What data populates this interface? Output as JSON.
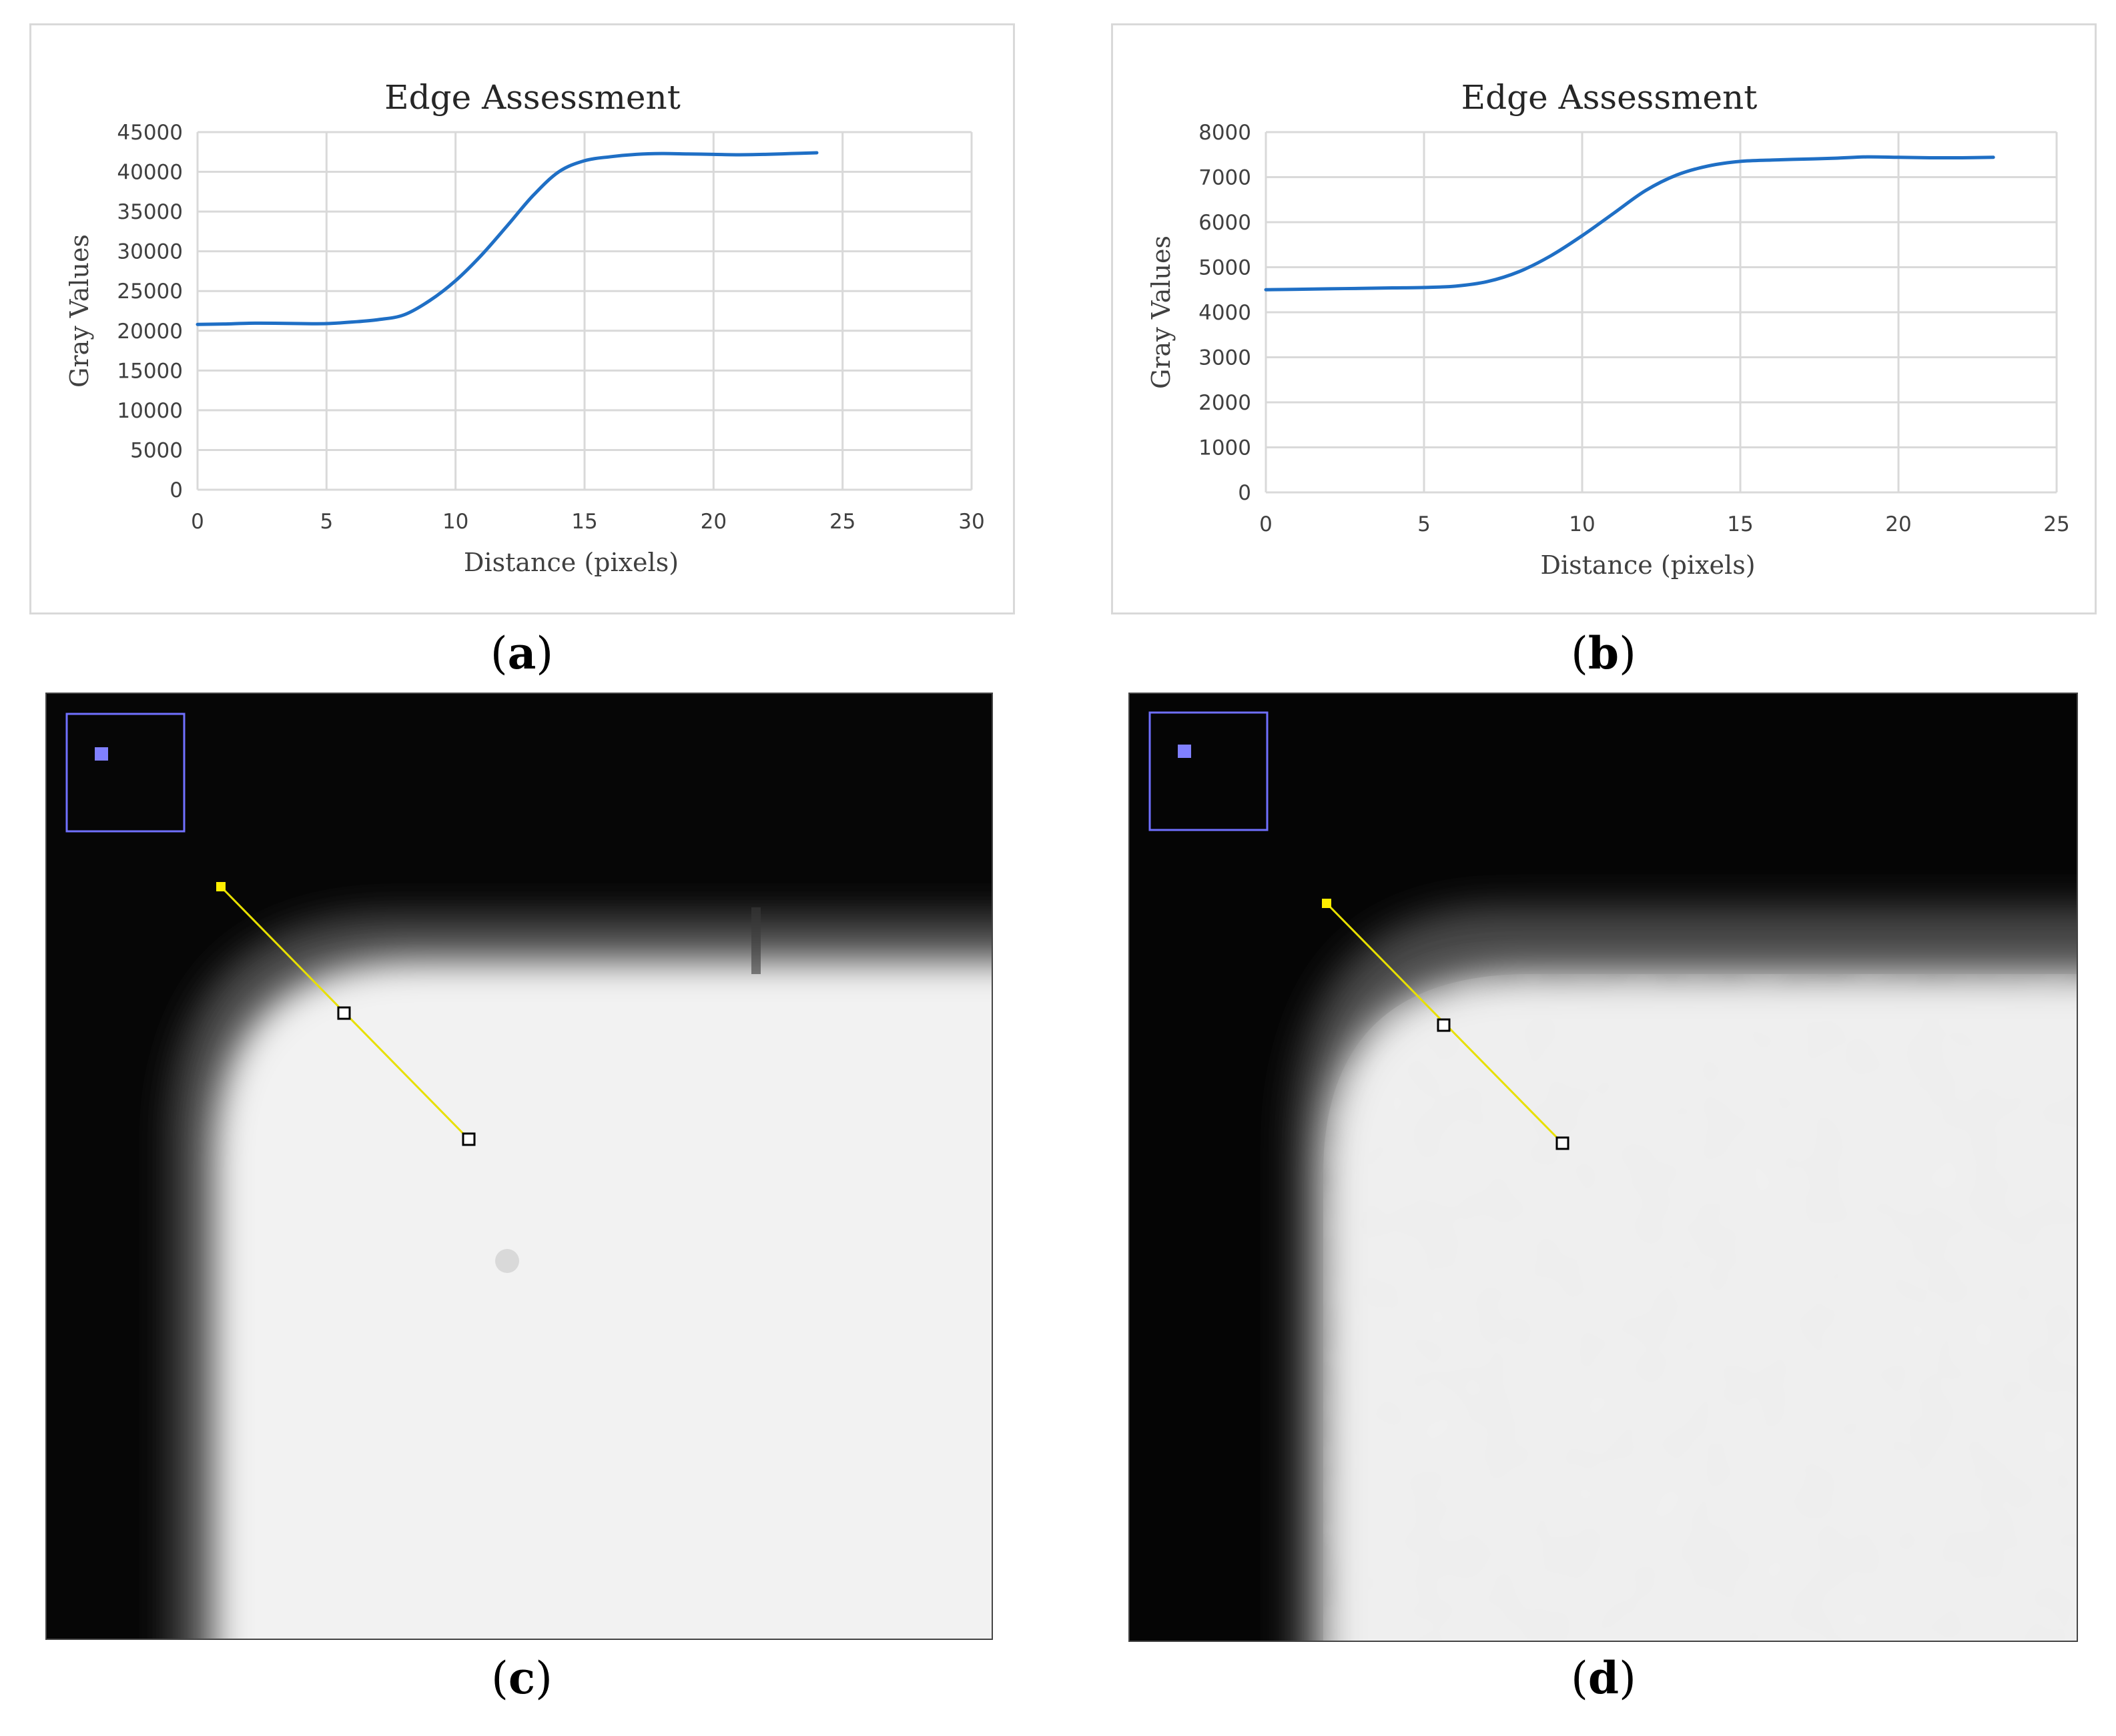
{
  "chart_data": [
    {
      "id": "a",
      "type": "line",
      "title": "Edge Assessment",
      "xlabel": "Distance (pixels)",
      "ylabel": "Gray Values",
      "xlim": [
        0,
        30
      ],
      "ylim": [
        0,
        45000
      ],
      "xticks": [
        0,
        5,
        10,
        15,
        20,
        25,
        30
      ],
      "yticks": [
        0,
        5000,
        10000,
        15000,
        20000,
        25000,
        30000,
        35000,
        40000,
        45000
      ],
      "grid": true,
      "series": [
        {
          "name": "Gray Values",
          "color": "#1f6fc5",
          "x": [
            0,
            1,
            2,
            3,
            4,
            5,
            6,
            7,
            8,
            9,
            10,
            11,
            12,
            13,
            14,
            15,
            16,
            17,
            18,
            19,
            20,
            21,
            22,
            23,
            24
          ],
          "y": [
            20800,
            20850,
            20950,
            20950,
            20900,
            20900,
            21100,
            21400,
            22000,
            23800,
            26300,
            29500,
            33200,
            37000,
            40000,
            41400,
            41900,
            42200,
            42300,
            42250,
            42200,
            42150,
            42200,
            42300,
            42400
          ]
        }
      ]
    },
    {
      "id": "b",
      "type": "line",
      "title": "Edge Assessment",
      "xlabel": "Distance (pixels)",
      "ylabel": "Gray Values",
      "xlim": [
        0,
        25
      ],
      "ylim": [
        0,
        8000
      ],
      "xticks": [
        0,
        5,
        10,
        15,
        20,
        25
      ],
      "yticks": [
        0,
        1000,
        2000,
        3000,
        4000,
        5000,
        6000,
        7000,
        8000
      ],
      "grid": true,
      "series": [
        {
          "name": "Gray Values",
          "color": "#1f6fc5",
          "x": [
            0,
            1,
            2,
            3,
            4,
            5,
            6,
            7,
            8,
            9,
            10,
            11,
            12,
            13,
            14,
            15,
            16,
            17,
            18,
            19,
            20,
            21,
            22,
            23
          ],
          "y": [
            4500,
            4510,
            4520,
            4530,
            4540,
            4550,
            4580,
            4680,
            4900,
            5250,
            5700,
            6200,
            6700,
            7050,
            7250,
            7350,
            7380,
            7400,
            7420,
            7450,
            7440,
            7430,
            7430,
            7440
          ]
        }
      ]
    }
  ],
  "captions": {
    "a": "(a)",
    "b": "(b)",
    "c": "(c)",
    "d": "(d)"
  },
  "colors": {
    "line": "#1f6fc5",
    "grid": "#d9d9d9",
    "profile_line": "#e8e000",
    "roi_box": "#7070ff"
  }
}
